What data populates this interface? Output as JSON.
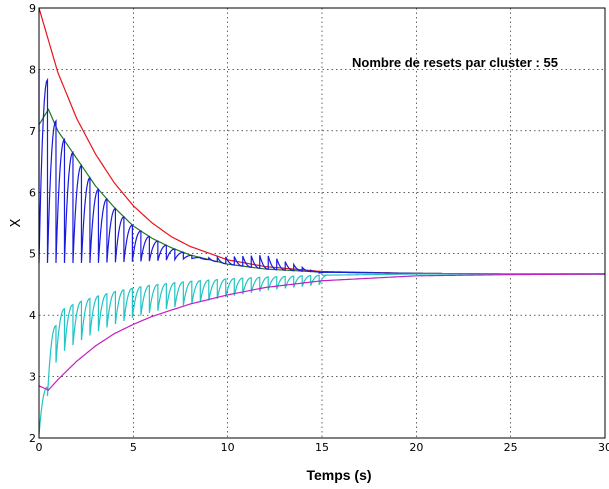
{
  "chart_data": {
    "type": "line",
    "title": "",
    "xlabel": "Temps (s)",
    "ylabel": "X",
    "xlim": [
      0,
      30
    ],
    "ylim": [
      2,
      9
    ],
    "xticks": [
      0,
      5,
      10,
      15,
      20,
      25,
      30
    ],
    "yticks": [
      2,
      3,
      4,
      5,
      6,
      7,
      8,
      9
    ],
    "grid": true,
    "annotation": "Nombre de resets par cluster : 55",
    "colors": {
      "red": "#e8141b",
      "blue": "#1a1adc",
      "green": "#1f7a1f",
      "cyan": "#22c4c4",
      "magenta": "#c21fc2"
    },
    "series": [
      {
        "color": "red",
        "x": [
          0,
          1,
          2,
          3,
          4,
          5,
          6,
          7,
          8,
          10,
          12,
          15,
          20,
          25,
          30
        ],
        "y": [
          9.0,
          7.95,
          7.2,
          6.62,
          6.15,
          5.78,
          5.5,
          5.28,
          5.12,
          4.9,
          4.79,
          4.71,
          4.68,
          4.67,
          4.67
        ]
      },
      {
        "color": "green",
        "x": [
          0,
          0.5,
          1,
          2,
          3,
          4,
          5,
          6,
          7,
          8,
          10,
          12,
          15,
          20,
          25,
          30
        ],
        "y": [
          7.1,
          7.35,
          7.0,
          6.55,
          6.1,
          5.75,
          5.45,
          5.25,
          5.1,
          4.98,
          4.83,
          4.75,
          4.7,
          4.68,
          4.67,
          4.67
        ]
      },
      {
        "color": "blue",
        "x": [
          0,
          0.25,
          0.5,
          1,
          1.5,
          2,
          3,
          4,
          5,
          6,
          7,
          8,
          10,
          12,
          15,
          20,
          25,
          30
        ],
        "y": [
          8.0,
          7.95,
          7.8,
          7.0,
          6.8,
          6.55,
          6.1,
          5.75,
          5.45,
          5.25,
          5.1,
          4.98,
          4.83,
          4.75,
          4.7,
          4.68,
          4.67,
          4.67
        ],
        "sawtooth_lower": [
          4.85,
          4.85,
          4.85,
          4.85,
          4.85,
          4.85,
          4.85,
          4.86,
          4.87,
          4.88,
          4.9,
          4.92,
          4.95,
          4.98,
          4.67,
          4.67,
          4.67,
          4.67
        ]
      },
      {
        "color": "cyan",
        "x": [
          0,
          0.3,
          1,
          2,
          3,
          4,
          5,
          6,
          7,
          8,
          10,
          12,
          15,
          20,
          25,
          30
        ],
        "y": [
          2.05,
          2.5,
          4.05,
          4.2,
          4.3,
          4.38,
          4.44,
          4.49,
          4.52,
          4.55,
          4.59,
          4.62,
          4.65,
          4.67,
          4.67,
          4.67
        ],
        "sawtooth_lower": [
          2.05,
          2.5,
          3.35,
          3.55,
          3.72,
          3.85,
          3.96,
          4.05,
          4.12,
          4.18,
          4.3,
          4.4,
          4.5,
          4.67,
          4.67,
          4.67
        ]
      },
      {
        "color": "magenta",
        "x": [
          0,
          0.5,
          1,
          2,
          3,
          4,
          5,
          6,
          7,
          8,
          10,
          12,
          15,
          20,
          25,
          30
        ],
        "y": [
          2.85,
          2.78,
          2.95,
          3.25,
          3.5,
          3.7,
          3.85,
          3.98,
          4.08,
          4.18,
          4.33,
          4.45,
          4.56,
          4.64,
          4.66,
          4.67
        ]
      }
    ]
  }
}
